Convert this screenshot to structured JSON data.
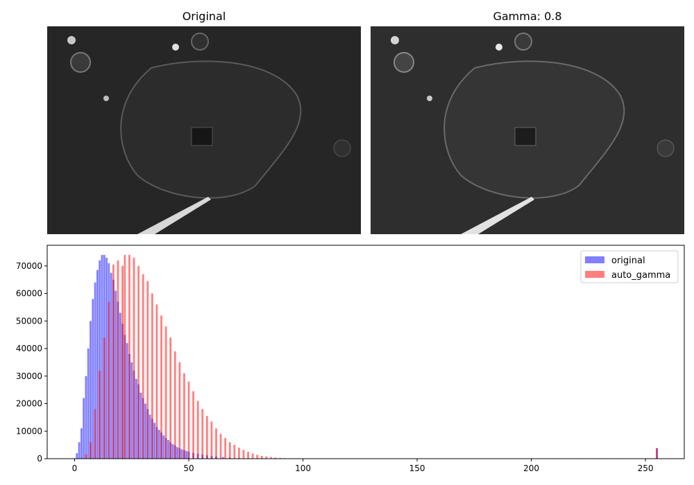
{
  "panels": [
    {
      "title": "Original"
    },
    {
      "title": "Gamma: 0.8"
    }
  ],
  "chart_data": {
    "type": "bar",
    "title": "",
    "xlabel": "",
    "ylabel": "",
    "xlim": [
      -12,
      267
    ],
    "ylim": [
      0,
      77500
    ],
    "xticks": [
      0,
      50,
      100,
      150,
      200,
      250
    ],
    "yticks": [
      0,
      10000,
      20000,
      30000,
      40000,
      50000,
      60000,
      70000
    ],
    "legend_placement": "top-right",
    "series": [
      {
        "name": "original",
        "color": "#0000ff",
        "alpha": 0.5,
        "x": [
          0,
          1,
          2,
          3,
          4,
          5,
          6,
          7,
          8,
          9,
          10,
          11,
          12,
          13,
          14,
          15,
          16,
          17,
          18,
          19,
          20,
          21,
          22,
          23,
          24,
          25,
          26,
          27,
          28,
          29,
          30,
          31,
          32,
          33,
          34,
          35,
          36,
          37,
          38,
          39,
          40,
          41,
          42,
          43,
          44,
          45,
          46,
          47,
          48,
          49,
          50,
          52,
          54,
          56,
          58,
          60,
          62,
          65,
          68,
          72,
          76,
          80,
          85,
          90,
          95,
          255
        ],
        "values": [
          0,
          2000,
          6000,
          11000,
          22000,
          30000,
          40000,
          50000,
          58000,
          64000,
          68500,
          72000,
          74000,
          74000,
          73000,
          71000,
          67500,
          65000,
          61000,
          57000,
          53000,
          49000,
          45000,
          42000,
          38000,
          35000,
          32000,
          29000,
          27000,
          24000,
          22000,
          20000,
          18000,
          16000,
          14500,
          13000,
          11500,
          10500,
          9500,
          8500,
          7500,
          6800,
          6000,
          5300,
          4800,
          4200,
          3800,
          3400,
          3100,
          2800,
          2500,
          2100,
          1800,
          1500,
          1250,
          1000,
          800,
          600,
          400,
          250,
          150,
          80,
          40,
          20,
          10,
          3800
        ]
      },
      {
        "name": "auto_gamma",
        "color": "#ff0000",
        "alpha": 0.5,
        "x": [
          3,
          5,
          7,
          9,
          11,
          13,
          15,
          17,
          19,
          21,
          22,
          24,
          26,
          28,
          30,
          32,
          34,
          36,
          38,
          40,
          42,
          44,
          46,
          48,
          50,
          52,
          54,
          56,
          58,
          60,
          62,
          64,
          66,
          68,
          70,
          72,
          74,
          76,
          78,
          80,
          82,
          84,
          86,
          88,
          90,
          92,
          94,
          200,
          210,
          220,
          230,
          240,
          250,
          255
        ],
        "values": [
          200,
          1500,
          6000,
          18000,
          32000,
          44000,
          57000,
          70500,
          72000,
          70000,
          74000,
          74000,
          73000,
          70000,
          67000,
          64500,
          60000,
          56000,
          52000,
          48000,
          44000,
          39000,
          35000,
          31000,
          28000,
          24500,
          21000,
          18000,
          15500,
          13500,
          11000,
          9000,
          7500,
          6000,
          5000,
          4000,
          3200,
          2500,
          1900,
          1400,
          1000,
          800,
          600,
          400,
          300,
          200,
          150,
          150,
          150,
          150,
          150,
          150,
          150,
          3800
        ]
      }
    ]
  }
}
